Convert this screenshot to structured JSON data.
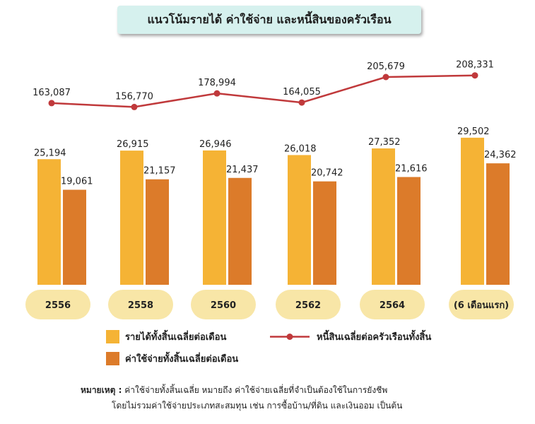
{
  "title": "แนวโน้มรายได้ ค่าใช้จ่าย และหนี้สินของครัวเรือน",
  "chart_data": {
    "type": "bar",
    "categories": [
      "2556",
      "2558",
      "2560",
      "2562",
      "2564",
      "(6 เดือนแรก)"
    ],
    "series": [
      {
        "name": "รายได้ทั้งสิ้นเฉลี่ยต่อเดือน",
        "type": "bar",
        "color": "#f5b335",
        "values": [
          25194,
          26915,
          26946,
          26018,
          27352,
          29502
        ],
        "labels": [
          "25,194",
          "26,915",
          "26,946",
          "26,018",
          "27,352",
          "29,502"
        ]
      },
      {
        "name": "ค่าใช้จ่ายทั้งสิ้นเฉลี่ยต่อเดือน",
        "type": "bar",
        "color": "#dc7b2a",
        "values": [
          19061,
          21157,
          21437,
          20742,
          21616,
          24362
        ],
        "labels": [
          "19,061",
          "21,157",
          "21,437",
          "20,742",
          "21,616",
          "24,362"
        ]
      },
      {
        "name": "หนี้สินเฉลี่ยต่อครัวเรือนทั้งสิ้น",
        "type": "line",
        "color": "#c0393b",
        "values": [
          163087,
          156770,
          178994,
          164055,
          205679,
          208331
        ],
        "labels": [
          "163,087",
          "156,770",
          "178,994",
          "164,055",
          "205,679",
          "208,331"
        ]
      }
    ],
    "grid": false,
    "legend": "bottom"
  },
  "category_pill_color": "#f8e6a7",
  "note": {
    "label": "หมายเหตุ :",
    "line1": "ค่าใช้จ่ายทั้งสิ้นเฉลี่ย หมายถึง ค่าใช้จ่ายเฉลี่ยที่จำเป็นต้องใช้ในการยังชีพ",
    "line2": "โดยไม่รวมค่าใช้จ่ายประเภทสะสมทุน เช่น การซื้อบ้าน/ที่ดิน และเงินออม เป็นต้น"
  }
}
